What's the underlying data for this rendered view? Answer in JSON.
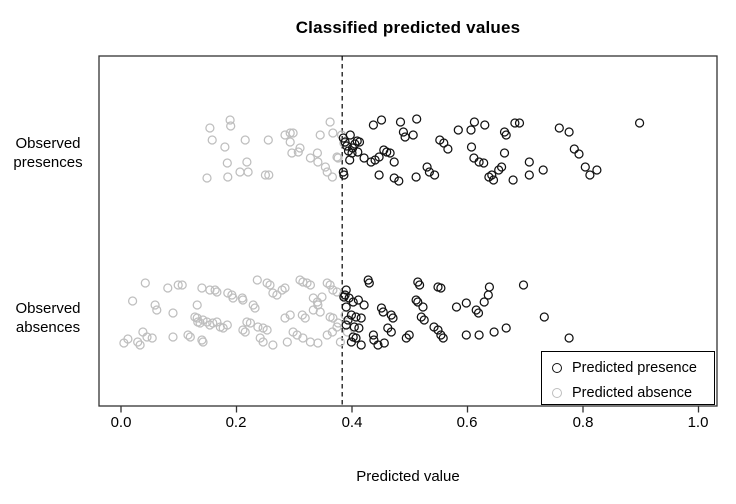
{
  "chart_data": {
    "type": "scatter",
    "title": "Classified predicted values",
    "xlabel": "Predicted value",
    "ylabel": "",
    "xlim": [
      0.0,
      1.0
    ],
    "x_ticks": [
      0.0,
      0.2,
      0.4,
      0.6,
      0.8,
      1.0
    ],
    "x_tick_labels": [
      "0.0",
      "0.2",
      "0.4",
      "0.6",
      "0.8",
      "1.0"
    ],
    "grid": false,
    "threshold_line": {
      "x": 0.383,
      "style": "dashed",
      "color": "#000000"
    },
    "group_labels": [
      {
        "line1": "Observed",
        "line2": "presences"
      },
      {
        "line1": "Observed",
        "line2": "absences"
      }
    ],
    "legend": {
      "position": "bottom-right",
      "items": [
        {
          "label": "Predicted presence",
          "color": "#111111"
        },
        {
          "label": "Predicted absence",
          "color": "#bebebe"
        }
      ]
    },
    "colors": {
      "presence_point": "#111111",
      "absence_point": "#bebebe",
      "axis": "#333333",
      "background": "#ffffff"
    },
    "series": [
      {
        "name": "Observed presences - predicted absence",
        "group": 0,
        "class": "predicted-absence",
        "color": "#bebebe",
        "points": [
          [
            0.154,
            -22
          ],
          [
            0.158,
            -10
          ],
          [
            0.189,
            -30
          ],
          [
            0.19,
            -24
          ],
          [
            0.18,
            -3
          ],
          [
            0.149,
            28
          ],
          [
            0.184,
            13
          ],
          [
            0.185,
            27
          ],
          [
            0.206,
            22
          ],
          [
            0.215,
            -10
          ],
          [
            0.218,
            12
          ],
          [
            0.22,
            22
          ],
          [
            0.255,
            -10
          ],
          [
            0.25,
            25
          ],
          [
            0.256,
            25
          ],
          [
            0.284,
            -15
          ],
          [
            0.293,
            -17
          ],
          [
            0.298,
            -17
          ],
          [
            0.293,
            -8
          ],
          [
            0.296,
            3
          ],
          [
            0.307,
            2
          ],
          [
            0.31,
            -2
          ],
          [
            0.328,
            8
          ],
          [
            0.34,
            3
          ],
          [
            0.341,
            12
          ],
          [
            0.345,
            -15
          ],
          [
            0.362,
            -28
          ],
          [
            0.367,
            -17
          ],
          [
            0.354,
            17
          ],
          [
            0.357,
            22
          ],
          [
            0.366,
            27
          ],
          [
            0.374,
            7
          ],
          [
            0.376,
            8
          ],
          [
            0.382,
            -15
          ],
          [
            0.386,
            -7
          ]
        ]
      },
      {
        "name": "Observed presences - predicted presence",
        "group": 0,
        "class": "predicted-presence",
        "color": "#111111",
        "points": [
          [
            0.385,
            -12
          ],
          [
            0.388,
            -8
          ],
          [
            0.391,
            -4
          ],
          [
            0.394,
            1
          ],
          [
            0.397,
            -15
          ],
          [
            0.401,
            -2
          ],
          [
            0.405,
            -6
          ],
          [
            0.409,
            -9
          ],
          [
            0.413,
            -8
          ],
          [
            0.385,
            22
          ],
          [
            0.386,
            25
          ],
          [
            0.4,
            3
          ],
          [
            0.41,
            2
          ],
          [
            0.396,
            10
          ],
          [
            0.437,
            -25
          ],
          [
            0.451,
            -30
          ],
          [
            0.484,
            -28
          ],
          [
            0.512,
            -31
          ],
          [
            0.489,
            -18
          ],
          [
            0.492,
            -13
          ],
          [
            0.506,
            -15
          ],
          [
            0.421,
            8
          ],
          [
            0.433,
            12
          ],
          [
            0.44,
            10
          ],
          [
            0.447,
            7
          ],
          [
            0.455,
            0
          ],
          [
            0.46,
            2
          ],
          [
            0.466,
            3
          ],
          [
            0.473,
            12
          ],
          [
            0.447,
            25
          ],
          [
            0.473,
            28
          ],
          [
            0.481,
            31
          ],
          [
            0.511,
            27
          ],
          [
            0.53,
            17
          ],
          [
            0.534,
            22
          ],
          [
            0.543,
            25
          ],
          [
            0.552,
            -10
          ],
          [
            0.559,
            -7
          ],
          [
            0.566,
            -1
          ],
          [
            0.584,
            -20
          ],
          [
            0.606,
            -20
          ],
          [
            0.612,
            -28
          ],
          [
            0.63,
            -25
          ],
          [
            0.607,
            -3
          ],
          [
            0.611,
            8
          ],
          [
            0.62,
            12
          ],
          [
            0.628,
            13
          ],
          [
            0.637,
            27
          ],
          [
            0.642,
            25
          ],
          [
            0.654,
            20
          ],
          [
            0.645,
            30
          ],
          [
            0.659,
            17
          ],
          [
            0.664,
            -18
          ],
          [
            0.667,
            -15
          ],
          [
            0.682,
            -27
          ],
          [
            0.69,
            -27
          ],
          [
            0.664,
            3
          ],
          [
            0.679,
            30
          ],
          [
            0.707,
            12
          ],
          [
            0.707,
            25
          ],
          [
            0.731,
            20
          ],
          [
            0.759,
            -22
          ],
          [
            0.776,
            -18
          ],
          [
            0.785,
            -1
          ],
          [
            0.793,
            4
          ],
          [
            0.804,
            17
          ],
          [
            0.812,
            25
          ],
          [
            0.824,
            20
          ],
          [
            0.898,
            -27
          ]
        ]
      },
      {
        "name": "Observed absences - predicted absence",
        "group": 1,
        "class": "predicted-absence",
        "color": "#bebebe",
        "points": [
          [
            0.042,
            -32
          ],
          [
            0.081,
            -27
          ],
          [
            0.099,
            -30
          ],
          [
            0.106,
            -30
          ],
          [
            0.059,
            -10
          ],
          [
            0.062,
            -5
          ],
          [
            0.09,
            -2
          ],
          [
            0.038,
            17
          ],
          [
            0.045,
            22
          ],
          [
            0.033,
            30
          ],
          [
            0.029,
            27
          ],
          [
            0.054,
            23
          ],
          [
            0.09,
            22
          ],
          [
            0.14,
            -27
          ],
          [
            0.154,
            -25
          ],
          [
            0.163,
            -25
          ],
          [
            0.166,
            -23
          ],
          [
            0.185,
            -22
          ],
          [
            0.192,
            -20
          ],
          [
            0.194,
            -17
          ],
          [
            0.132,
            -10
          ],
          [
            0.128,
            2
          ],
          [
            0.132,
            3
          ],
          [
            0.133,
            7
          ],
          [
            0.137,
            8
          ],
          [
            0.142,
            5
          ],
          [
            0.149,
            7
          ],
          [
            0.154,
            10
          ],
          [
            0.159,
            8
          ],
          [
            0.166,
            7
          ],
          [
            0.116,
            20
          ],
          [
            0.12,
            22
          ],
          [
            0.14,
            25
          ],
          [
            0.142,
            27
          ],
          [
            0.172,
            12
          ],
          [
            0.177,
            13
          ],
          [
            0.184,
            10
          ],
          [
            0.21,
            -17
          ],
          [
            0.211,
            -15
          ],
          [
            0.229,
            -10
          ],
          [
            0.232,
            -7
          ],
          [
            0.236,
            -35
          ],
          [
            0.253,
            -32
          ],
          [
            0.258,
            -30
          ],
          [
            0.263,
            -22
          ],
          [
            0.27,
            -20
          ],
          [
            0.279,
            -25
          ],
          [
            0.284,
            -27
          ],
          [
            0.218,
            7
          ],
          [
            0.224,
            8
          ],
          [
            0.211,
            15
          ],
          [
            0.215,
            17
          ],
          [
            0.237,
            12
          ],
          [
            0.246,
            13
          ],
          [
            0.253,
            15
          ],
          [
            0.241,
            23
          ],
          [
            0.246,
            27
          ],
          [
            0.263,
            30
          ],
          [
            0.288,
            27
          ],
          [
            0.284,
            3
          ],
          [
            0.293,
            0
          ],
          [
            0.31,
            -35
          ],
          [
            0.315,
            -33
          ],
          [
            0.322,
            -32
          ],
          [
            0.328,
            -30
          ],
          [
            0.333,
            -17
          ],
          [
            0.34,
            -13
          ],
          [
            0.341,
            -10
          ],
          [
            0.348,
            -18
          ],
          [
            0.357,
            -32
          ],
          [
            0.362,
            -30
          ],
          [
            0.367,
            -25
          ],
          [
            0.374,
            -23
          ],
          [
            0.314,
            0
          ],
          [
            0.319,
            3
          ],
          [
            0.333,
            -5
          ],
          [
            0.345,
            -3
          ],
          [
            0.362,
            2
          ],
          [
            0.367,
            3
          ],
          [
            0.298,
            17
          ],
          [
            0.305,
            20
          ],
          [
            0.315,
            23
          ],
          [
            0.328,
            27
          ],
          [
            0.341,
            28
          ],
          [
            0.357,
            20
          ],
          [
            0.366,
            17
          ],
          [
            0.374,
            12
          ],
          [
            0.376,
            8
          ],
          [
            0.385,
            -20
          ],
          [
            0.388,
            0
          ],
          [
            0.392,
            17
          ],
          [
            0.38,
            27
          ],
          [
            0.005,
            28
          ],
          [
            0.012,
            24
          ],
          [
            0.02,
            -14
          ]
        ]
      },
      {
        "name": "Observed absences - predicted presence",
        "group": 1,
        "class": "predicted-presence",
        "color": "#111111",
        "points": [
          [
            0.388,
            -20
          ],
          [
            0.39,
            -8
          ],
          [
            0.393,
            5
          ],
          [
            0.39,
            10
          ],
          [
            0.39,
            -25
          ],
          [
            0.386,
            -18
          ],
          [
            0.395,
            -17
          ],
          [
            0.402,
            -13
          ],
          [
            0.411,
            -15
          ],
          [
            0.421,
            -10
          ],
          [
            0.428,
            -35
          ],
          [
            0.43,
            -32
          ],
          [
            0.399,
            0
          ],
          [
            0.407,
            2
          ],
          [
            0.416,
            3
          ],
          [
            0.404,
            12
          ],
          [
            0.412,
            13
          ],
          [
            0.402,
            22
          ],
          [
            0.407,
            23
          ],
          [
            0.399,
            27
          ],
          [
            0.416,
            30
          ],
          [
            0.437,
            20
          ],
          [
            0.438,
            25
          ],
          [
            0.445,
            30
          ],
          [
            0.451,
            -7
          ],
          [
            0.454,
            -3
          ],
          [
            0.468,
            0
          ],
          [
            0.471,
            3
          ],
          [
            0.462,
            13
          ],
          [
            0.468,
            17
          ],
          [
            0.456,
            28
          ],
          [
            0.494,
            23
          ],
          [
            0.499,
            20
          ],
          [
            0.514,
            -33
          ],
          [
            0.517,
            -30
          ],
          [
            0.511,
            -15
          ],
          [
            0.514,
            -13
          ],
          [
            0.523,
            -8
          ],
          [
            0.52,
            2
          ],
          [
            0.525,
            5
          ],
          [
            0.549,
            -28
          ],
          [
            0.554,
            -27
          ],
          [
            0.542,
            12
          ],
          [
            0.549,
            15
          ],
          [
            0.554,
            20
          ],
          [
            0.558,
            23
          ],
          [
            0.581,
            -8
          ],
          [
            0.598,
            -12
          ],
          [
            0.615,
            -5
          ],
          [
            0.619,
            -2
          ],
          [
            0.629,
            -13
          ],
          [
            0.636,
            -20
          ],
          [
            0.638,
            -28
          ],
          [
            0.697,
            -30
          ],
          [
            0.733,
            2
          ],
          [
            0.776,
            23
          ],
          [
            0.598,
            20
          ],
          [
            0.62,
            20
          ],
          [
            0.646,
            17
          ],
          [
            0.667,
            13
          ]
        ]
      }
    ]
  }
}
